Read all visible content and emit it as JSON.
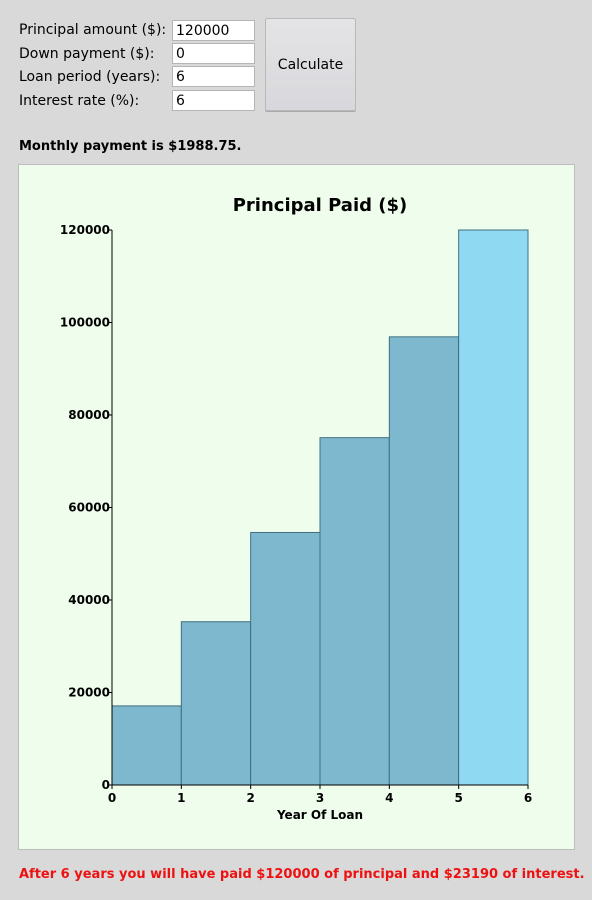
{
  "form": {
    "principal_label": "Principal amount ($):",
    "principal_value": "120000",
    "down_payment_label": "Down payment ($):",
    "down_payment_value": "0",
    "loan_period_label": "Loan period (years):",
    "loan_period_value": "6",
    "interest_rate_label": "Interest rate (%):",
    "interest_rate_value": "6",
    "calculate_label": "Calculate"
  },
  "result": {
    "monthly_payment_text": "Monthly payment is $1988.75."
  },
  "summary": {
    "text": "After 6 years you will have paid $120000 of principal and $23190 of interest."
  },
  "colors": {
    "page_background": "#d9d9d9",
    "chart_background": "#effdec",
    "bar_fill": "#7eb8ce",
    "bar_highlight_fill": "#8fdaf2",
    "bar_stroke": "#3f6f80",
    "summary_text": "#ee1111"
  },
  "chart_data": {
    "type": "bar",
    "title": "Principal Paid ($)",
    "xlabel": "Year Of Loan",
    "ylabel": "",
    "categories": [
      "1",
      "2",
      "3",
      "4",
      "5",
      "6"
    ],
    "x_ticks": [
      "0",
      "1",
      "2",
      "3",
      "4",
      "5",
      "6"
    ],
    "y_ticks": [
      "0",
      "20000",
      "40000",
      "60000",
      "80000",
      "100000",
      "120000"
    ],
    "values": [
      17100,
      35300,
      54600,
      75100,
      96900,
      120000
    ],
    "highlighted_index": 5,
    "xlim": [
      0,
      6
    ],
    "ylim": [
      0,
      120000
    ],
    "grid": false,
    "legend": "none"
  }
}
